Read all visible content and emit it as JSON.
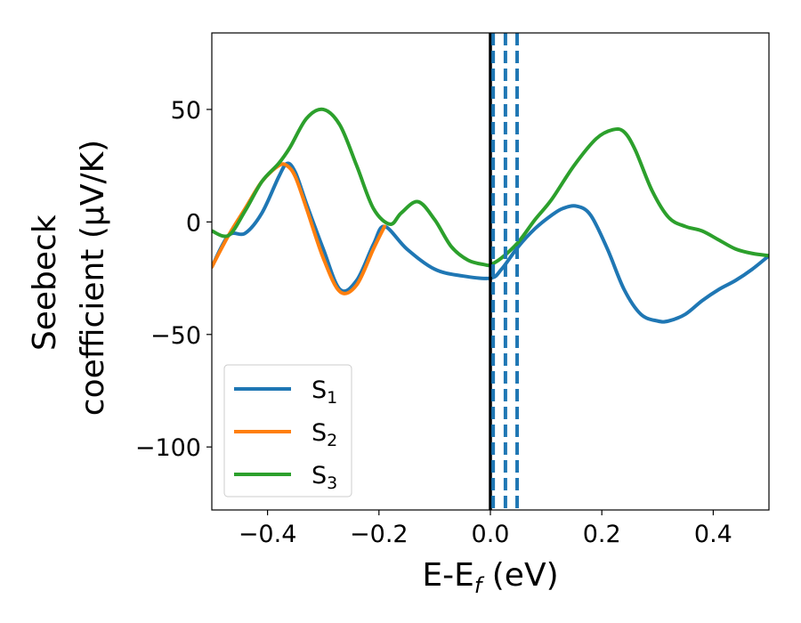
{
  "chart_data": {
    "type": "line",
    "xlabel": {
      "main": "E-E",
      "sub": "f",
      "unit": " (eV)"
    },
    "ylabel": {
      "line1": "Seebeck",
      "line2": "coefficient  (μV/K)"
    },
    "xlim": [
      -0.5,
      0.5
    ],
    "ylim": [
      -128,
      84
    ],
    "xticks": [
      -0.4,
      -0.2,
      0.0,
      0.2,
      0.4
    ],
    "xtick_labels": [
      "−0.4",
      "−0.2",
      "0.0",
      "0.2",
      "0.4"
    ],
    "yticks": [
      50,
      0,
      -50,
      -100
    ],
    "ytick_labels": [
      "50",
      "0",
      "−50",
      "−100"
    ],
    "grid": false,
    "legend_position": "lower-left",
    "vertical_lines": [
      {
        "x": 0.0,
        "color": "#000000",
        "style": "solid"
      },
      {
        "x": 0.005,
        "color": "#1f77b4",
        "style": "dashed"
      },
      {
        "x": 0.027,
        "color": "#1f77b4",
        "style": "dashed"
      },
      {
        "x": 0.048,
        "color": "#1f77b4",
        "style": "dashed"
      }
    ],
    "series": [
      {
        "name": "S",
        "sub": "1",
        "color": "#1f77b4",
        "x": [
          -0.5,
          -0.47,
          -0.44,
          -0.41,
          -0.38,
          -0.365,
          -0.35,
          -0.33,
          -0.3,
          -0.27,
          -0.24,
          -0.21,
          -0.19,
          -0.15,
          -0.1,
          -0.05,
          0.0,
          0.02,
          0.05,
          0.08,
          0.11,
          0.13,
          0.155,
          0.18,
          0.21,
          0.24,
          0.27,
          0.3,
          0.32,
          0.35,
          0.38,
          0.41,
          0.44,
          0.47,
          0.5
        ],
        "y": [
          -20,
          -6,
          -5,
          4,
          20,
          26,
          22,
          8,
          -12,
          -30,
          -26,
          -10,
          -2,
          -12,
          -21,
          -24,
          -25,
          -21,
          -11,
          -3,
          3,
          6,
          7,
          3,
          -12,
          -30,
          -41,
          -44,
          -44,
          -41,
          -35,
          -30,
          -26,
          -21,
          -15
        ]
      },
      {
        "name": "S",
        "sub": "2",
        "color": "#ff7f0e",
        "x": [
          -0.5,
          -0.47,
          -0.44,
          -0.41,
          -0.38,
          -0.365,
          -0.35,
          -0.33,
          -0.3,
          -0.27,
          -0.24,
          -0.21,
          -0.19
        ],
        "y": [
          -20,
          -6,
          6,
          18,
          25,
          25,
          20,
          6,
          -16,
          -31,
          -28,
          -12,
          -2
        ]
      },
      {
        "name": "S",
        "sub": "3",
        "color": "#2ca02c",
        "x": [
          -0.5,
          -0.47,
          -0.44,
          -0.41,
          -0.38,
          -0.36,
          -0.33,
          -0.3,
          -0.27,
          -0.24,
          -0.21,
          -0.18,
          -0.16,
          -0.13,
          -0.1,
          -0.07,
          -0.04,
          -0.01,
          0.0,
          0.02,
          0.05,
          0.08,
          0.11,
          0.15,
          0.19,
          0.22,
          0.24,
          0.26,
          0.29,
          0.32,
          0.35,
          0.38,
          0.41,
          0.44,
          0.47,
          0.5
        ],
        "y": [
          -4,
          -6,
          5,
          18,
          26,
          33,
          46,
          50,
          43,
          25,
          6,
          -1,
          4,
          9,
          1,
          -11,
          -17,
          -19,
          -19,
          -16,
          -9,
          1,
          10,
          25,
          37,
          41,
          40,
          32,
          14,
          2,
          -2,
          -4,
          -8,
          -12,
          -14,
          -15
        ]
      }
    ]
  }
}
